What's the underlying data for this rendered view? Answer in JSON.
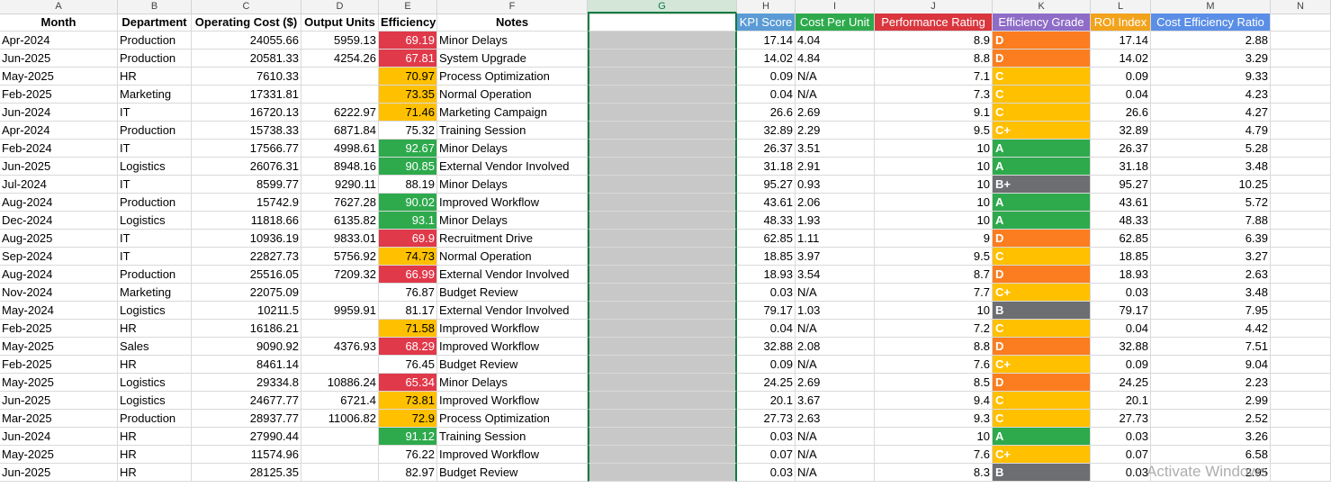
{
  "columns": [
    "A",
    "B",
    "C",
    "D",
    "E",
    "F",
    "G",
    "H",
    "I",
    "J",
    "K",
    "L",
    "M",
    "N"
  ],
  "headers": {
    "month": "Month",
    "department": "Department",
    "operating_cost": "Operating Cost ($)",
    "output_units": "Output Units",
    "efficiency": "Efficiency",
    "notes": "Notes",
    "kpi_score": "KPI Score",
    "cost_per_unit": "Cost Per Unit",
    "performance_rating": "Performance Rating",
    "efficiency_grade": "Efficiency Grade",
    "roi_index": "ROI Index",
    "cost_efficiency_ratio": "Cost Efficiency Ratio"
  },
  "header_colors": {
    "kpi_score": "#5b9bd5",
    "cost_per_unit": "#2eaa4d",
    "performance_rating": "#d9363e",
    "efficiency_grade": "#8e6cc7",
    "roi_index": "#f2a21b",
    "cost_efficiency_ratio": "#5b8ee6"
  },
  "status_colors": {
    "red": "#e0394a",
    "yellow": "#ffc000",
    "green": "#2eaa4d",
    "orange": "#fb7d1f",
    "gray": "#6d6e72"
  },
  "rows": [
    {
      "month": "Apr-2024",
      "dept": "Production",
      "cost": "24055.66",
      "units": "5959.13",
      "eff": "69.19",
      "eff_color": "red",
      "notes": "Minor Delays",
      "kpi": "17.14",
      "cpu": "4.04",
      "perf": "8.9",
      "grade": "D",
      "grade_color": "orange",
      "roi": "17.14",
      "cer": "2.88"
    },
    {
      "month": "Jun-2025",
      "dept": "Production",
      "cost": "20581.33",
      "units": "4254.26",
      "eff": "67.81",
      "eff_color": "red",
      "notes": "System Upgrade",
      "kpi": "14.02",
      "cpu": "4.84",
      "perf": "8.8",
      "grade": "D",
      "grade_color": "orange",
      "roi": "14.02",
      "cer": "3.29"
    },
    {
      "month": "May-2025",
      "dept": "HR",
      "cost": "7610.33",
      "units": "",
      "eff": "70.97",
      "eff_color": "yellow",
      "notes": "Process Optimization",
      "kpi": "0.09",
      "cpu": "N/A",
      "perf": "7.1",
      "grade": "C",
      "grade_color": "yellow",
      "roi": "0.09",
      "cer": "9.33"
    },
    {
      "month": "Feb-2025",
      "dept": "Marketing",
      "cost": "17331.81",
      "units": "",
      "eff": "73.35",
      "eff_color": "yellow",
      "notes": "Normal Operation",
      "kpi": "0.04",
      "cpu": "N/A",
      "perf": "7.3",
      "grade": "C",
      "grade_color": "yellow",
      "roi": "0.04",
      "cer": "4.23"
    },
    {
      "month": "Jun-2024",
      "dept": "IT",
      "cost": "16720.13",
      "units": "6222.97",
      "eff": "71.46",
      "eff_color": "yellow",
      "notes": "Marketing Campaign",
      "kpi": "26.6",
      "cpu": "2.69",
      "perf": "9.1",
      "grade": "C",
      "grade_color": "yellow",
      "roi": "26.6",
      "cer": "4.27"
    },
    {
      "month": "Apr-2024",
      "dept": "Production",
      "cost": "15738.33",
      "units": "6871.84",
      "eff": "75.32",
      "eff_color": "",
      "notes": "Training Session",
      "kpi": "32.89",
      "cpu": "2.29",
      "perf": "9.5",
      "grade": "C+",
      "grade_color": "yellow",
      "roi": "32.89",
      "cer": "4.79"
    },
    {
      "month": "Feb-2024",
      "dept": "IT",
      "cost": "17566.77",
      "units": "4998.61",
      "eff": "92.67",
      "eff_color": "green",
      "notes": "Minor Delays",
      "kpi": "26.37",
      "cpu": "3.51",
      "perf": "10",
      "grade": "A",
      "grade_color": "green",
      "roi": "26.37",
      "cer": "5.28"
    },
    {
      "month": "Jun-2025",
      "dept": "Logistics",
      "cost": "26076.31",
      "units": "8948.16",
      "eff": "90.85",
      "eff_color": "green",
      "notes": "External Vendor Involved",
      "kpi": "31.18",
      "cpu": "2.91",
      "perf": "10",
      "grade": "A",
      "grade_color": "green",
      "roi": "31.18",
      "cer": "3.48"
    },
    {
      "month": "Jul-2024",
      "dept": "IT",
      "cost": "8599.77",
      "units": "9290.11",
      "eff": "88.19",
      "eff_color": "",
      "notes": "Minor Delays",
      "kpi": "95.27",
      "cpu": "0.93",
      "perf": "10",
      "grade": "B+",
      "grade_color": "gray",
      "roi": "95.27",
      "cer": "10.25"
    },
    {
      "month": "Aug-2024",
      "dept": "Production",
      "cost": "15742.9",
      "units": "7627.28",
      "eff": "90.02",
      "eff_color": "green",
      "notes": "Improved Workflow",
      "kpi": "43.61",
      "cpu": "2.06",
      "perf": "10",
      "grade": "A",
      "grade_color": "green",
      "roi": "43.61",
      "cer": "5.72"
    },
    {
      "month": "Dec-2024",
      "dept": "Logistics",
      "cost": "11818.66",
      "units": "6135.82",
      "eff": "93.1",
      "eff_color": "green",
      "notes": "Minor Delays",
      "kpi": "48.33",
      "cpu": "1.93",
      "perf": "10",
      "grade": "A",
      "grade_color": "green",
      "roi": "48.33",
      "cer": "7.88"
    },
    {
      "month": "Aug-2025",
      "dept": "IT",
      "cost": "10936.19",
      "units": "9833.01",
      "eff": "69.9",
      "eff_color": "red",
      "notes": "Recruitment Drive",
      "kpi": "62.85",
      "cpu": "1.11",
      "perf": "9",
      "grade": "D",
      "grade_color": "orange",
      "roi": "62.85",
      "cer": "6.39"
    },
    {
      "month": "Sep-2024",
      "dept": "IT",
      "cost": "22827.73",
      "units": "5756.92",
      "eff": "74.73",
      "eff_color": "yellow",
      "notes": "Normal Operation",
      "kpi": "18.85",
      "cpu": "3.97",
      "perf": "9.5",
      "grade": "C",
      "grade_color": "yellow",
      "roi": "18.85",
      "cer": "3.27"
    },
    {
      "month": "Aug-2024",
      "dept": "Production",
      "cost": "25516.05",
      "units": "7209.32",
      "eff": "66.99",
      "eff_color": "red",
      "notes": "External Vendor Involved",
      "kpi": "18.93",
      "cpu": "3.54",
      "perf": "8.7",
      "grade": "D",
      "grade_color": "orange",
      "roi": "18.93",
      "cer": "2.63"
    },
    {
      "month": "Nov-2024",
      "dept": "Marketing",
      "cost": "22075.09",
      "units": "",
      "eff": "76.87",
      "eff_color": "",
      "notes": "Budget Review",
      "kpi": "0.03",
      "cpu": "N/A",
      "perf": "7.7",
      "grade": "C+",
      "grade_color": "yellow",
      "roi": "0.03",
      "cer": "3.48"
    },
    {
      "month": "May-2024",
      "dept": "Logistics",
      "cost": "10211.5",
      "units": "9959.91",
      "eff": "81.17",
      "eff_color": "",
      "notes": "External Vendor Involved",
      "kpi": "79.17",
      "cpu": "1.03",
      "perf": "10",
      "grade": "B",
      "grade_color": "gray",
      "roi": "79.17",
      "cer": "7.95"
    },
    {
      "month": "Feb-2025",
      "dept": "HR",
      "cost": "16186.21",
      "units": "",
      "eff": "71.58",
      "eff_color": "yellow",
      "notes": "Improved Workflow",
      "kpi": "0.04",
      "cpu": "N/A",
      "perf": "7.2",
      "grade": "C",
      "grade_color": "yellow",
      "roi": "0.04",
      "cer": "4.42"
    },
    {
      "month": "May-2025",
      "dept": "Sales",
      "cost": "9090.92",
      "units": "4376.93",
      "eff": "68.29",
      "eff_color": "red",
      "notes": "Improved Workflow",
      "kpi": "32.88",
      "cpu": "2.08",
      "perf": "8.8",
      "grade": "D",
      "grade_color": "orange",
      "roi": "32.88",
      "cer": "7.51"
    },
    {
      "month": "Feb-2025",
      "dept": "HR",
      "cost": "8461.14",
      "units": "",
      "eff": "76.45",
      "eff_color": "",
      "notes": "Budget Review",
      "kpi": "0.09",
      "cpu": "N/A",
      "perf": "7.6",
      "grade": "C+",
      "grade_color": "yellow",
      "roi": "0.09",
      "cer": "9.04"
    },
    {
      "month": "May-2025",
      "dept": "Logistics",
      "cost": "29334.8",
      "units": "10886.24",
      "eff": "65.34",
      "eff_color": "red",
      "notes": "Minor Delays",
      "kpi": "24.25",
      "cpu": "2.69",
      "perf": "8.5",
      "grade": "D",
      "grade_color": "orange",
      "roi": "24.25",
      "cer": "2.23"
    },
    {
      "month": "Jun-2025",
      "dept": "Logistics",
      "cost": "24677.77",
      "units": "6721.4",
      "eff": "73.81",
      "eff_color": "yellow",
      "notes": "Improved Workflow",
      "kpi": "20.1",
      "cpu": "3.67",
      "perf": "9.4",
      "grade": "C",
      "grade_color": "yellow",
      "roi": "20.1",
      "cer": "2.99"
    },
    {
      "month": "Mar-2025",
      "dept": "Production",
      "cost": "28937.77",
      "units": "11006.82",
      "eff": "72.9",
      "eff_color": "yellow",
      "notes": "Process Optimization",
      "kpi": "27.73",
      "cpu": "2.63",
      "perf": "9.3",
      "grade": "C",
      "grade_color": "yellow",
      "roi": "27.73",
      "cer": "2.52"
    },
    {
      "month": "Jun-2024",
      "dept": "HR",
      "cost": "27990.44",
      "units": "",
      "eff": "91.12",
      "eff_color": "green",
      "notes": "Training Session",
      "kpi": "0.03",
      "cpu": "N/A",
      "perf": "10",
      "grade": "A",
      "grade_color": "green",
      "roi": "0.03",
      "cer": "3.26"
    },
    {
      "month": "May-2025",
      "dept": "HR",
      "cost": "11574.96",
      "units": "",
      "eff": "76.22",
      "eff_color": "",
      "notes": "Improved Workflow",
      "kpi": "0.07",
      "cpu": "N/A",
      "perf": "7.6",
      "grade": "C+",
      "grade_color": "yellow",
      "roi": "0.07",
      "cer": "6.58"
    },
    {
      "month": "Jun-2025",
      "dept": "HR",
      "cost": "28125.35",
      "units": "",
      "eff": "82.97",
      "eff_color": "",
      "notes": "Budget Review",
      "kpi": "0.03",
      "cpu": "N/A",
      "perf": "8.3",
      "grade": "B",
      "grade_color": "gray",
      "roi": "0.03",
      "cer": "2.95"
    }
  ],
  "watermark": "Activate Windows"
}
